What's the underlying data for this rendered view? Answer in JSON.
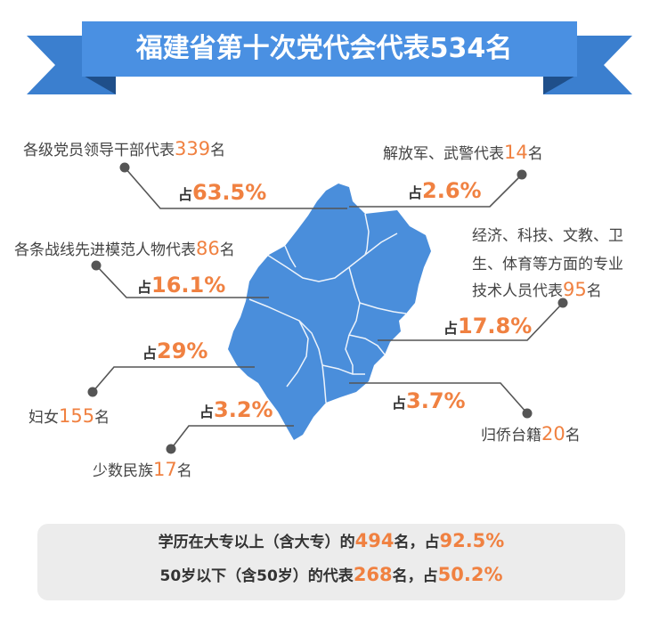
{
  "title": "福建省第十次党代会代表534名",
  "colors": {
    "banner": "#4a90d9",
    "banner_dark": "#2f6db3",
    "map": "#4a8edb",
    "accent": "#f08141",
    "line": "#555555"
  },
  "categories": [
    {
      "id": "cadres",
      "label_prefix": "各级党员领导干部代表",
      "count": "339",
      "unit": "名",
      "pct_prefix": "占",
      "pct": "63.5%"
    },
    {
      "id": "army",
      "label_prefix": "解放军、武警代表",
      "count": "14",
      "unit": "名",
      "pct_prefix": "占",
      "pct": "2.6%"
    },
    {
      "id": "models",
      "label_prefix": "各条战线先进模范人物代表",
      "count": "86",
      "unit": "名",
      "pct_prefix": "占",
      "pct": "16.1%"
    },
    {
      "id": "tech",
      "label_line1": "经济、科技、文教、卫",
      "label_line2": "生、体育等方面的专业",
      "label_prefix": "技术人员代表",
      "count": "95",
      "unit": "名",
      "pct_prefix": "占",
      "pct": "17.8%"
    },
    {
      "id": "women",
      "label_prefix": "妇女",
      "count": "155",
      "unit": "名",
      "pct_prefix": "占",
      "pct": "29%"
    },
    {
      "id": "ethnic",
      "label_prefix": "少数民族",
      "count": "17",
      "unit": "名",
      "pct_prefix": "占",
      "pct": "3.2%"
    },
    {
      "id": "overseas",
      "label_prefix": "归侨台籍",
      "count": "20",
      "unit": "名",
      "pct_prefix": "占",
      "pct": "3.7%"
    }
  ],
  "summary": {
    "line1": {
      "text1": "学历在大专以上（含大专）的",
      "num1": "494",
      "text2": "名，占",
      "num2": "92.5%"
    },
    "line2": {
      "text1": "50岁以下（含50岁）的代表",
      "num1": "268",
      "text2": "名，占",
      "num2": "50.2%"
    }
  }
}
